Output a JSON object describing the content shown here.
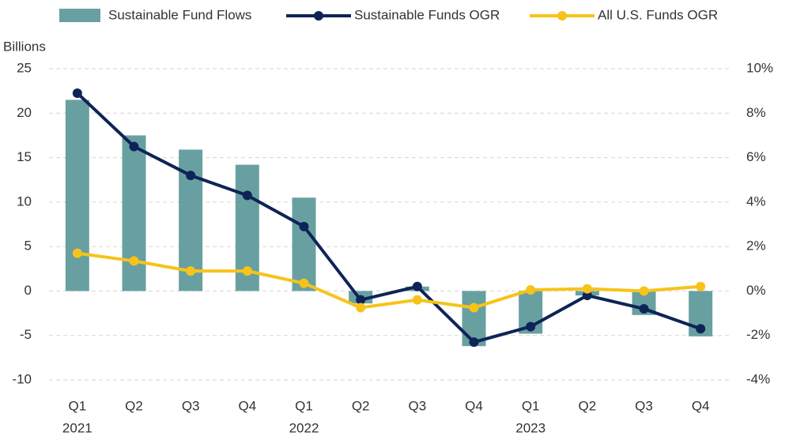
{
  "chart_data": {
    "type": "bar-line",
    "y_label": "Billions",
    "categories": [
      "Q1",
      "Q2",
      "Q3",
      "Q4",
      "Q1",
      "Q2",
      "Q3",
      "Q4",
      "Q1",
      "Q2",
      "Q3",
      "Q4"
    ],
    "years": [
      "2021",
      null,
      null,
      null,
      "2022",
      null,
      null,
      null,
      "2023",
      null,
      null,
      null
    ],
    "series": [
      {
        "name": "Sustainable Fund Flows",
        "type": "bar",
        "axis": "y",
        "color": "#68a0a1",
        "values": [
          21.5,
          17.5,
          15.9,
          14.2,
          10.5,
          -1.4,
          0.5,
          -6.2,
          -4.8,
          -0.5,
          -2.7,
          -5.1
        ]
      },
      {
        "name": "Sustainable Funds OGR",
        "type": "line",
        "axis": "y2",
        "color": "#0e2457",
        "values": [
          8.9,
          6.5,
          5.2,
          4.3,
          2.9,
          -0.4,
          0.2,
          -2.3,
          -1.6,
          -0.2,
          -0.8,
          -1.7
        ]
      },
      {
        "name": "All U.S. Funds OGR",
        "type": "line",
        "axis": "y2",
        "color": "#f7c31a",
        "values": [
          1.7,
          1.35,
          0.9,
          0.9,
          0.35,
          -0.75,
          -0.4,
          -0.75,
          0.05,
          0.1,
          0,
          0.2
        ]
      }
    ],
    "ylim": [
      -10,
      25
    ],
    "yticks": [
      -10,
      -5,
      0,
      5,
      10,
      15,
      20,
      25
    ],
    "y2lim": [
      -4,
      10
    ],
    "y2ticks": [
      {
        "value": -4,
        "label": "-4%"
      },
      {
        "value": -2,
        "label": "-2%"
      },
      {
        "value": 0,
        "label": "0%"
      },
      {
        "value": 2,
        "label": "2%"
      },
      {
        "value": 4,
        "label": "4%"
      },
      {
        "value": 6,
        "label": "6%"
      },
      {
        "value": 8,
        "label": "8%"
      },
      {
        "value": 10,
        "label": "10%"
      }
    ],
    "grid": true,
    "legend": "top"
  }
}
